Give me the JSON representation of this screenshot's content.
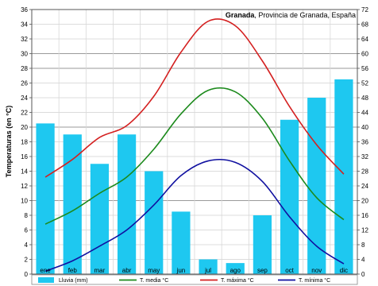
{
  "chart_data": {
    "type": "bar+line",
    "title": {
      "place": "Granada",
      "rest": ", Provincia de Granada, España"
    },
    "categories": [
      "ene",
      "feb",
      "mar",
      "abr",
      "may",
      "jun",
      "jul",
      "ago",
      "sep",
      "oct",
      "nov",
      "dic"
    ],
    "ylabel_left": "Temperaturas (en °C)",
    "ylim_left": [
      0,
      36
    ],
    "yticks_left": [
      0,
      2,
      4,
      6,
      8,
      10,
      12,
      14,
      16,
      18,
      20,
      22,
      24,
      26,
      28,
      30,
      32,
      34,
      36
    ],
    "ylim_right": [
      0,
      72
    ],
    "yticks_right": [
      0,
      4,
      8,
      12,
      16,
      20,
      24,
      28,
      32,
      36,
      40,
      44,
      48,
      52,
      56,
      60,
      64,
      68,
      72
    ],
    "grid": true,
    "legend_placement": "bottom",
    "series": [
      {
        "name": "Lluvia (mm)",
        "kind": "bar",
        "axis": "right",
        "color": "#1ec8f0",
        "values": [
          41,
          38,
          30,
          38,
          28,
          17,
          4,
          3,
          16,
          42,
          48,
          53
        ]
      },
      {
        "name": "T. media °C",
        "kind": "line",
        "axis": "left",
        "color": "#1c8a1c",
        "values": [
          6.8,
          8.6,
          11.0,
          13.2,
          17.0,
          21.8,
          25.0,
          24.8,
          21.2,
          15.4,
          10.4,
          7.4
        ]
      },
      {
        "name": "T. máxima °C",
        "kind": "line",
        "axis": "left",
        "color": "#d42020",
        "values": [
          13.2,
          15.6,
          18.6,
          20.2,
          24.2,
          30.2,
          34.4,
          33.8,
          29.0,
          22.8,
          17.6,
          13.6
        ]
      },
      {
        "name": "T. mínima °C",
        "kind": "line",
        "axis": "left",
        "color": "#1010a0",
        "values": [
          0.4,
          1.8,
          3.8,
          6.0,
          9.4,
          13.4,
          15.4,
          15.2,
          12.6,
          7.8,
          3.8,
          1.4
        ]
      }
    ]
  }
}
